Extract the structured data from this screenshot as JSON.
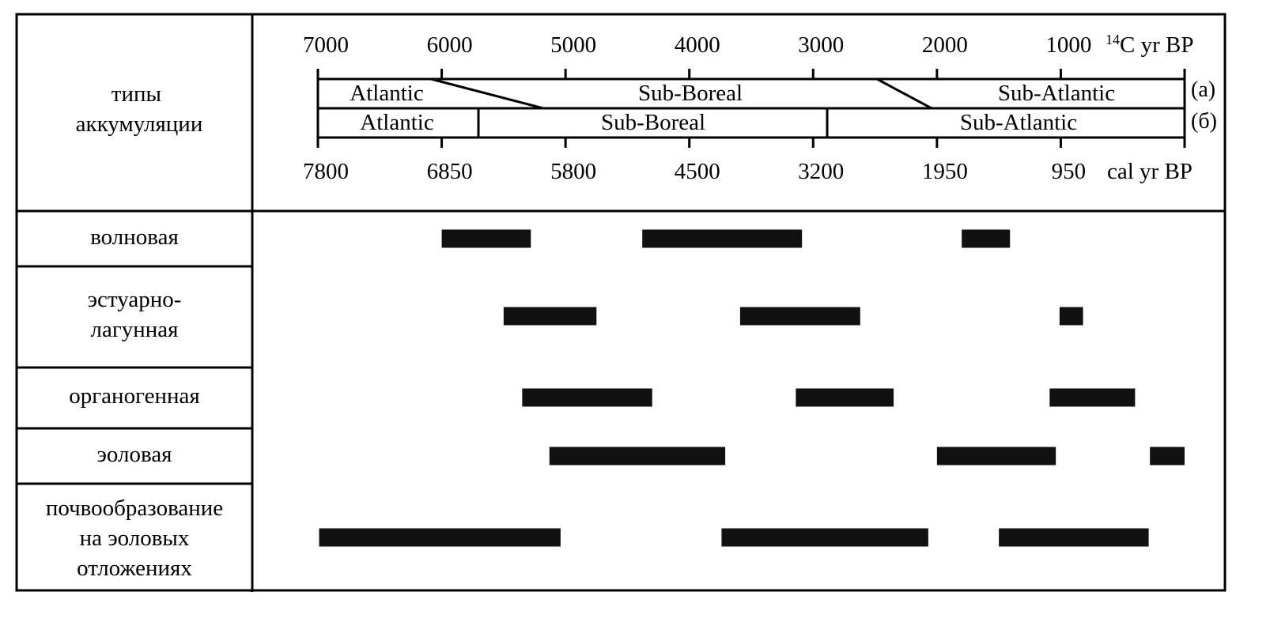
{
  "header": {
    "label": "типы аккумуляции",
    "label_lines": [
      "типы",
      "аккумуляции"
    ]
  },
  "scale_top": {
    "ticks": [
      "7000",
      "6000",
      "5000",
      "4000",
      "3000",
      "2000",
      "1000"
    ],
    "unit_prefix": "14",
    "unit": "C yr BP"
  },
  "scale_bottom": {
    "ticks": [
      "7800",
      "6850",
      "5800",
      "4500",
      "3200",
      "1950",
      "950"
    ],
    "unit": "cal yr BP"
  },
  "periods_a": {
    "tag": "(а)",
    "names": [
      "Atlantic",
      "Sub-Boreal",
      "Sub-Atlantic"
    ]
  },
  "periods_b": {
    "tag": "(б)",
    "names": [
      "Atlantic",
      "Sub-Boreal",
      "Sub-Atlantic"
    ]
  },
  "colors": {
    "ink": "#000000",
    "bar": "#111111",
    "background": "#ffffff"
  },
  "chart_data": {
    "type": "bar",
    "subtype": "gantt",
    "x_axis_top": {
      "label": "14C yr BP",
      "ticks": [
        7000,
        6000,
        5000,
        4000,
        3000,
        2000,
        1000
      ],
      "lim": [
        7000,
        0
      ]
    },
    "x_axis_bottom": {
      "label": "cal yr BP",
      "ticks": [
        7800,
        6850,
        5800,
        4500,
        3200,
        1950,
        950
      ]
    },
    "period_boundaries_a_14C": [
      {
        "from": 6100,
        "to": 5200
      },
      {
        "from": 2500,
        "to": 2050
      }
    ],
    "period_boundaries_b_14C": [
      5750,
      2900
    ],
    "series": [
      {
        "name": "волновая",
        "label_lines": [
          "волновая"
        ],
        "intervals": [
          [
            6000,
            5280
          ],
          [
            4380,
            3090
          ],
          [
            1800,
            1410
          ]
        ]
      },
      {
        "name": "эстуарно-лагунная",
        "label_lines": [
          "эстуарно-",
          "лагунная"
        ],
        "intervals": [
          [
            5500,
            4750
          ],
          [
            3590,
            2620
          ],
          [
            1010,
            820
          ]
        ]
      },
      {
        "name": "органогенная",
        "label_lines": [
          "органогенная"
        ],
        "intervals": [
          [
            5350,
            4300
          ],
          [
            3140,
            2350
          ],
          [
            1090,
            400
          ]
        ]
      },
      {
        "name": "эоловая",
        "label_lines": [
          "эоловая"
        ],
        "intervals": [
          [
            5130,
            3710
          ],
          [
            2000,
            1040
          ],
          [
            280,
            0
          ]
        ]
      },
      {
        "name": "почвообразование на эоловых отложениях",
        "label_lines": [
          "почвообразование",
          "на эоловых",
          "отложениях"
        ],
        "intervals": [
          [
            6990,
            5040
          ],
          [
            3740,
            2070
          ],
          [
            1500,
            290
          ]
        ]
      }
    ]
  }
}
